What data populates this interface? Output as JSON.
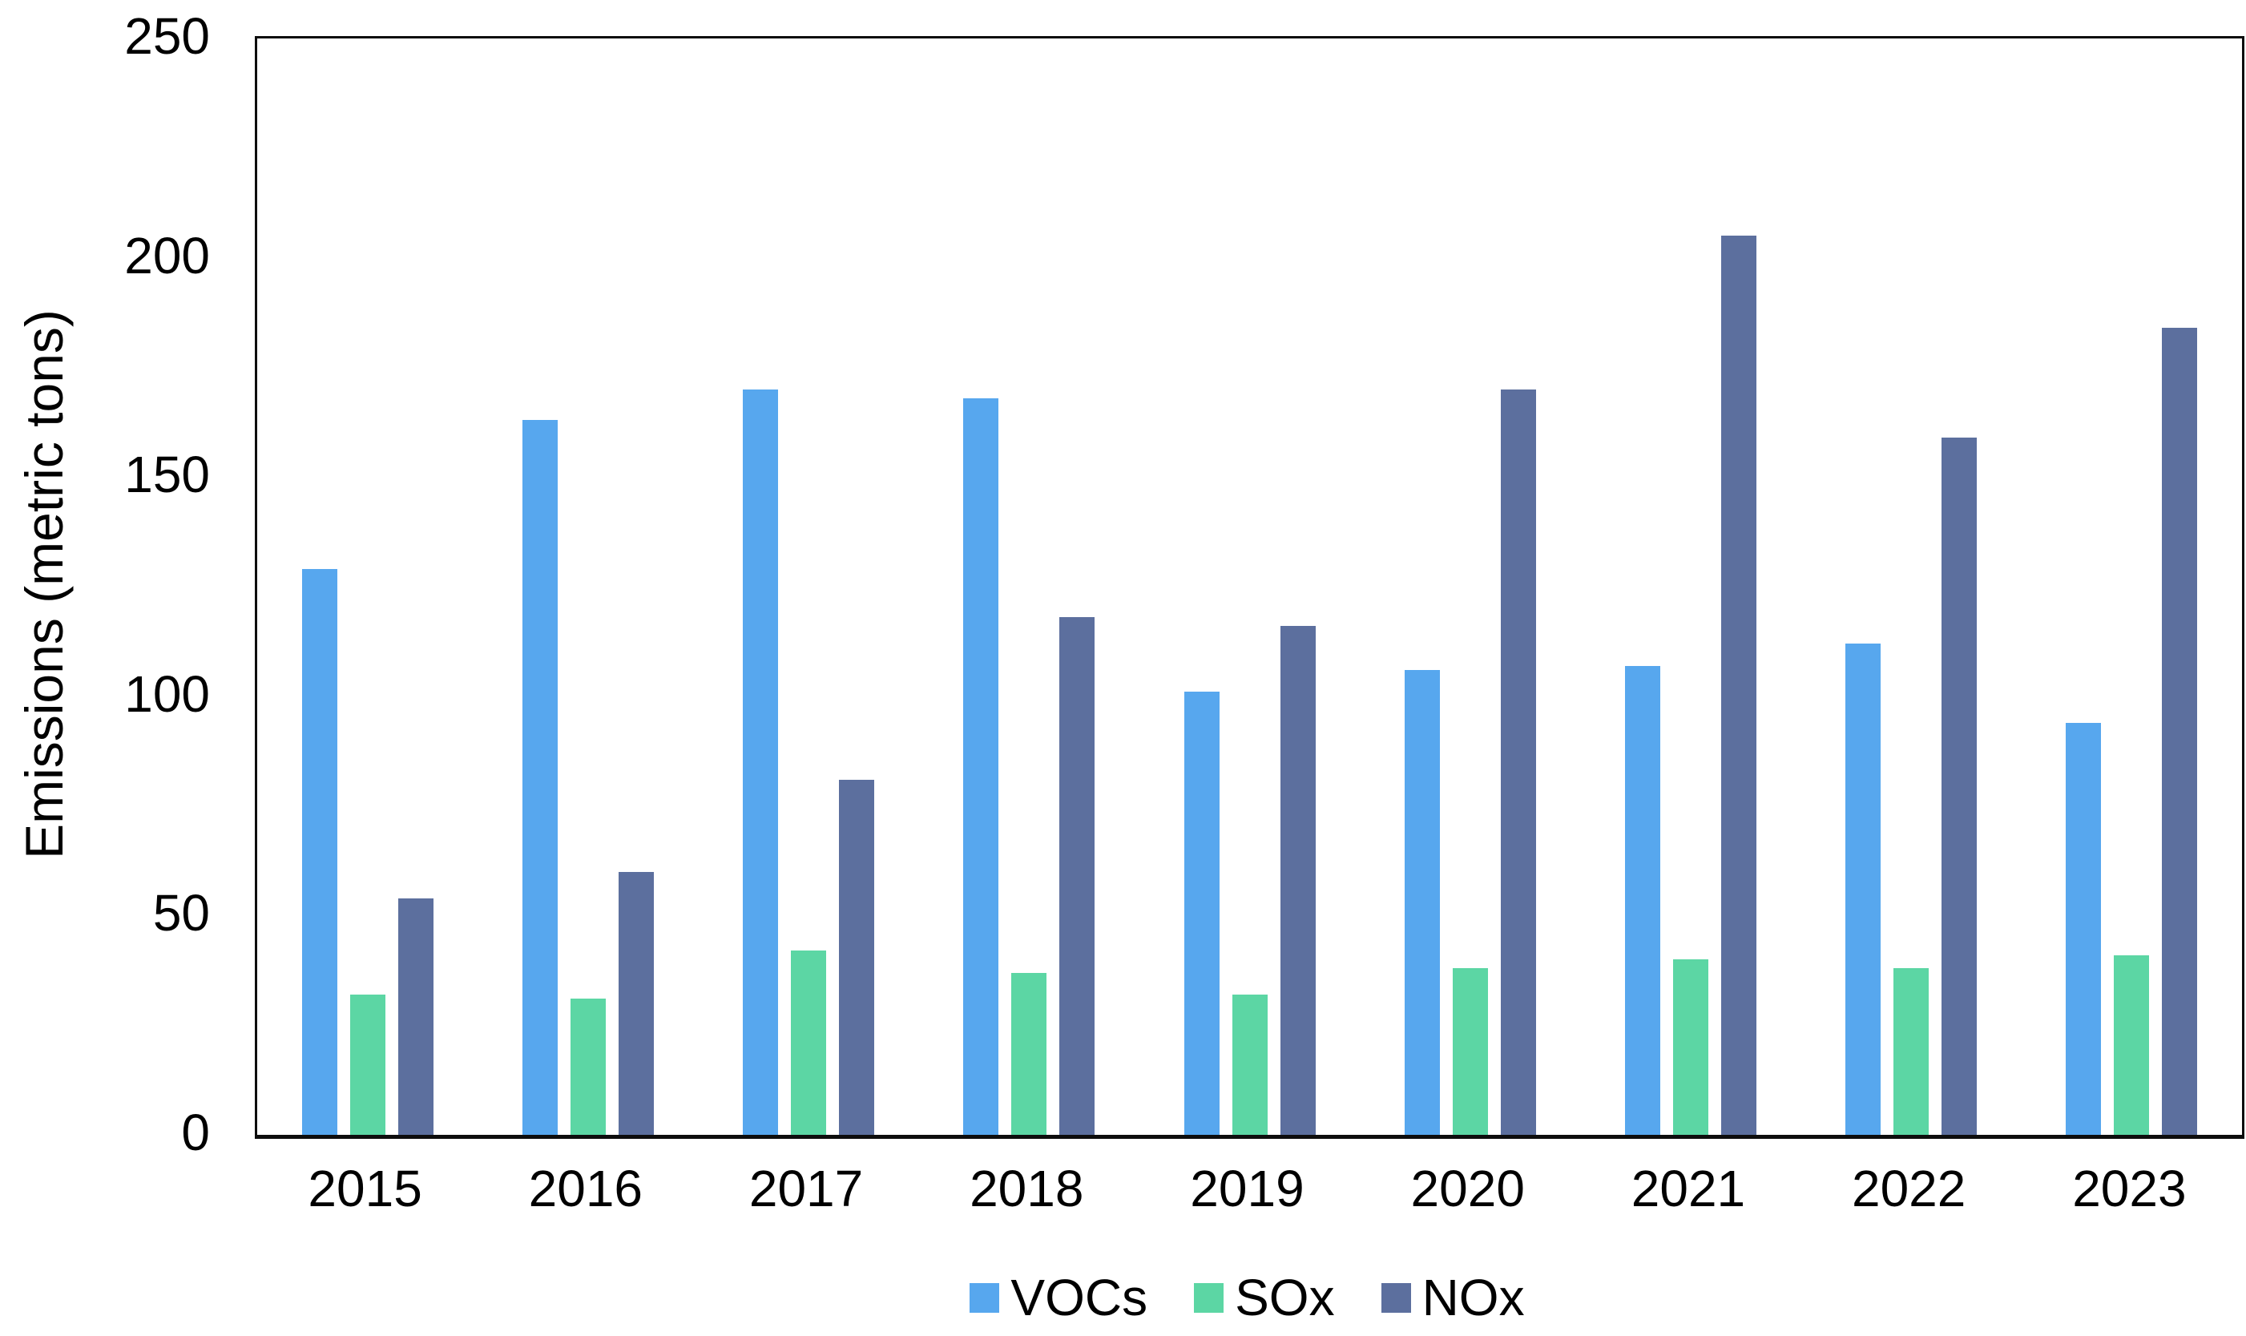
{
  "chart_data": {
    "type": "bar",
    "title": "",
    "xlabel": "",
    "ylabel": "Emissions (metric tons)",
    "categories": [
      "2015",
      "2016",
      "2017",
      "2018",
      "2019",
      "2020",
      "2021",
      "2022",
      "2023"
    ],
    "series": [
      {
        "name": "VOCs",
        "color": "#57A7EE",
        "values": [
          129,
          163,
          170,
          168,
          101,
          106,
          107,
          112,
          94
        ]
      },
      {
        "name": "SOx",
        "color": "#5CD6A4",
        "values": [
          32,
          31,
          42,
          37,
          32,
          38,
          40,
          38,
          41
        ]
      },
      {
        "name": "NOx",
        "color": "#5C6F9E",
        "values": [
          54,
          60,
          81,
          118,
          116,
          170,
          205,
          159,
          184
        ]
      }
    ],
    "ylim": [
      0,
      250
    ],
    "yticks": [
      0,
      50,
      100,
      150,
      200,
      250
    ],
    "grid": false,
    "legend_position": "bottom",
    "axis_color": "#0d0d0d",
    "background_color": "#ffffff"
  }
}
